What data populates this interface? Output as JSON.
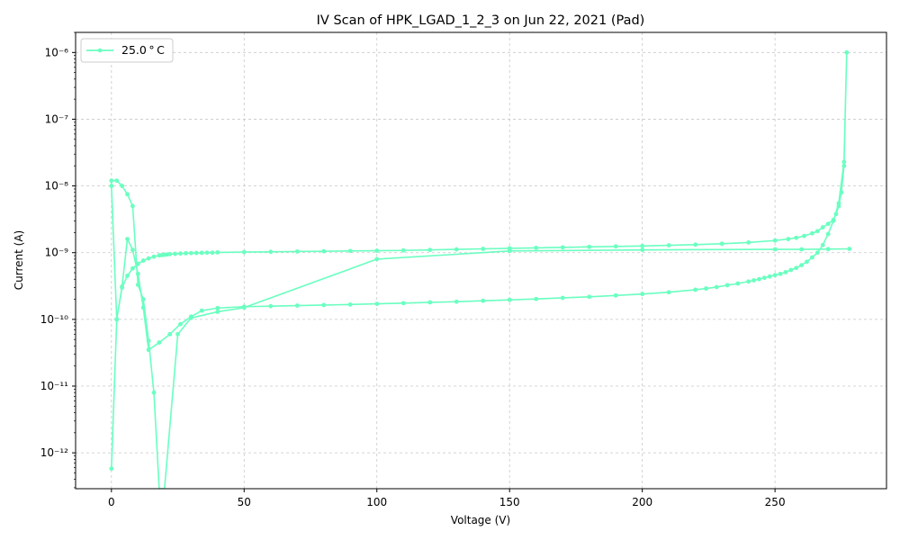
{
  "chart_data": {
    "type": "line",
    "title": "IV Scan of HPK_LGAD_1_2_3 on Jun 22, 2021 (Pad)",
    "xlabel": "Voltage (V)",
    "ylabel": "Current (A)",
    "x_ticks": [
      0,
      50,
      100,
      150,
      200,
      250
    ],
    "y_scale": "log",
    "y_ticks": [
      {
        "value": 1e-12,
        "label": "10⁻¹²"
      },
      {
        "value": 1e-11,
        "label": "10⁻¹¹"
      },
      {
        "value": 1e-10,
        "label": "10⁻¹⁰"
      },
      {
        "value": 1e-09,
        "label": "10⁻⁹"
      },
      {
        "value": 1e-08,
        "label": "10⁻⁸"
      },
      {
        "value": 1e-07,
        "label": "10⁻⁷"
      },
      {
        "value": 1e-06,
        "label": "10⁻⁶"
      }
    ],
    "xlim": [
      -13.5,
      292
    ],
    "ylim": [
      2.9e-13,
      2e-06
    ],
    "grid": true,
    "legend_position": "top-left",
    "series": [
      {
        "name": "25.0$^\\circ$C",
        "legend_label": "25.0 ° C",
        "color": "#6affc0",
        "x": [
          0,
          2,
          4,
          6,
          8,
          10,
          12,
          14,
          16,
          18,
          19,
          20,
          21,
          22,
          24,
          26,
          28,
          30,
          32,
          34,
          36,
          38,
          40,
          50,
          60,
          70,
          80,
          90,
          100,
          110,
          120,
          130,
          140,
          150,
          160,
          170,
          180,
          190,
          200,
          210,
          220,
          230,
          240,
          250,
          255,
          258,
          261,
          264,
          266,
          268,
          270,
          272,
          273,
          274,
          275,
          276,
          277,
          276,
          274,
          272,
          270,
          268,
          266,
          264,
          262,
          260,
          258,
          256,
          254,
          252,
          250,
          248,
          246,
          244,
          242,
          240,
          236,
          232,
          228,
          224,
          220,
          210,
          200,
          190,
          180,
          170,
          160,
          150,
          140,
          130,
          120,
          110,
          100,
          90,
          80,
          70,
          60,
          50,
          40,
          34,
          30,
          26,
          22,
          18,
          14,
          12,
          10,
          8,
          6,
          4,
          2,
          0,
          0,
          2,
          4,
          6,
          8,
          10,
          12,
          14,
          16,
          18,
          20,
          25,
          30,
          40,
          50,
          100,
          150,
          200,
          250,
          260,
          270,
          278
        ],
        "y": [
          5.8e-13,
          1e-10,
          3e-10,
          4.5e-10,
          5.8e-10,
          6.8e-10,
          7.6e-10,
          8.2e-10,
          8.7e-10,
          9.1e-10,
          9.2e-10,
          9.3e-10,
          9.4e-10,
          9.5e-10,
          9.6e-10,
          9.7e-10,
          9.8e-10,
          9.85e-10,
          9.9e-10,
          9.95e-10,
          1e-09,
          1e-09,
          1.01e-09,
          1.02e-09,
          1.03e-09,
          1.04e-09,
          1.05e-09,
          1.06e-09,
          1.07e-09,
          1.08e-09,
          1.1e-09,
          1.12e-09,
          1.14e-09,
          1.16e-09,
          1.18e-09,
          1.2e-09,
          1.22e-09,
          1.24e-09,
          1.26e-09,
          1.29e-09,
          1.32e-09,
          1.36e-09,
          1.42e-09,
          1.52e-09,
          1.6e-09,
          1.67e-09,
          1.78e-09,
          1.95e-09,
          2.1e-09,
          2.4e-09,
          2.7e-09,
          3.1e-09,
          3.8e-09,
          5e-09,
          8e-09,
          2e-08,
          1e-06,
          2.3e-08,
          5.5e-09,
          3e-09,
          1.9e-09,
          1.3e-09,
          1e-09,
          8.5e-10,
          7.3e-10,
          6.5e-10,
          5.9e-10,
          5.5e-10,
          5.1e-10,
          4.8e-10,
          4.6e-10,
          4.4e-10,
          4.2e-10,
          4e-10,
          3.85e-10,
          3.7e-10,
          3.45e-10,
          3.25e-10,
          3.05e-10,
          2.9e-10,
          2.78e-10,
          2.55e-10,
          2.4e-10,
          2.28e-10,
          2.18e-10,
          2.1e-10,
          2.02e-10,
          1.96e-10,
          1.9e-10,
          1.84e-10,
          1.8e-10,
          1.75e-10,
          1.71e-10,
          1.67e-10,
          1.64e-10,
          1.61e-10,
          1.58e-10,
          1.55e-10,
          1.48e-10,
          1.35e-10,
          1.1e-10,
          8.5e-11,
          6e-11,
          4.5e-11,
          3.5e-11,
          1.5e-10,
          4.8e-10,
          1.1e-09,
          1.6e-09,
          3.1e-10,
          1e-10,
          1e-08,
          1.2e-08,
          1.2e-08,
          1e-08,
          7.5e-09,
          5e-09,
          3.3e-10,
          2e-10,
          4.8e-11,
          8e-12,
          2.9e-13,
          2.9e-13,
          6e-11,
          1.05e-10,
          1.3e-10,
          1.5e-10,
          8e-10,
          1.06e-09,
          1.1e-09,
          1.12e-09,
          1.12e-09,
          1.13e-09,
          1.14e-09
        ]
      }
    ]
  }
}
